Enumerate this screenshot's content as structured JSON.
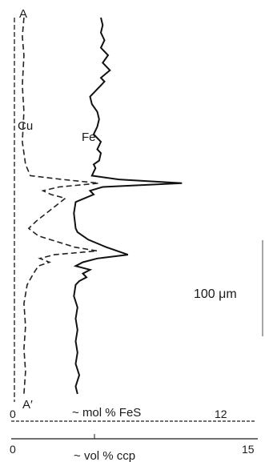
{
  "chart_data": {
    "type": "line",
    "profile_labels": {
      "start": "A",
      "end": "A′"
    },
    "scale_bar_label": "100 μm",
    "axes": [
      {
        "label": "mol % FeS",
        "ticks": [
          "0",
          "12"
        ],
        "range": [
          0,
          12
        ]
      },
      {
        "label": "vol % ccp",
        "ticks": [
          "0",
          "15"
        ],
        "range": [
          0,
          15
        ]
      }
    ],
    "series": [
      {
        "name": "Fe",
        "axis": "mol % FeS",
        "style": "solid",
        "points": [
          [
            4.8,
            0.0
          ],
          [
            4.9,
            0.02
          ],
          [
            4.8,
            0.04
          ],
          [
            5.0,
            0.06
          ],
          [
            4.8,
            0.08
          ],
          [
            5.2,
            0.1
          ],
          [
            4.9,
            0.12
          ],
          [
            5.3,
            0.14
          ],
          [
            4.8,
            0.16
          ],
          [
            5.0,
            0.17
          ],
          [
            4.6,
            0.19
          ],
          [
            4.2,
            0.21
          ],
          [
            4.3,
            0.23
          ],
          [
            4.6,
            0.25
          ],
          [
            4.7,
            0.27
          ],
          [
            4.6,
            0.29
          ],
          [
            4.4,
            0.31
          ],
          [
            4.8,
            0.33
          ],
          [
            4.6,
            0.35
          ],
          [
            4.8,
            0.36
          ],
          [
            4.7,
            0.38
          ],
          [
            4.4,
            0.39
          ],
          [
            4.5,
            0.4
          ],
          [
            4.4,
            0.41
          ],
          [
            4.3,
            0.42
          ],
          [
            5.8,
            0.43
          ],
          [
            9.3,
            0.44
          ],
          [
            4.9,
            0.45
          ],
          [
            4.2,
            0.46
          ],
          [
            4.4,
            0.47
          ],
          [
            3.9,
            0.48
          ],
          [
            3.4,
            0.49
          ],
          [
            3.3,
            0.52
          ],
          [
            3.4,
            0.56
          ],
          [
            3.5,
            0.57
          ],
          [
            4.1,
            0.59
          ],
          [
            5.1,
            0.61
          ],
          [
            6.3,
            0.63
          ],
          [
            4.6,
            0.64
          ],
          [
            3.8,
            0.65
          ],
          [
            3.4,
            0.66
          ],
          [
            4.2,
            0.67
          ],
          [
            3.8,
            0.68
          ],
          [
            4.0,
            0.69
          ],
          [
            3.6,
            0.7
          ],
          [
            3.4,
            0.71
          ],
          [
            3.3,
            0.74
          ],
          [
            3.5,
            0.77
          ],
          [
            3.4,
            0.8
          ],
          [
            3.5,
            0.83
          ],
          [
            3.4,
            0.86
          ],
          [
            3.5,
            0.89
          ],
          [
            3.4,
            0.92
          ],
          [
            3.6,
            0.95
          ],
          [
            3.4,
            0.98
          ],
          [
            3.5,
            1.0
          ]
        ]
      },
      {
        "name": "Cu",
        "axis": "vol % ccp",
        "style": "dashed",
        "points": [
          [
            0.6,
            0.0
          ],
          [
            0.5,
            0.05
          ],
          [
            0.6,
            0.1
          ],
          [
            0.5,
            0.18
          ],
          [
            0.6,
            0.25
          ],
          [
            0.5,
            0.33
          ],
          [
            0.7,
            0.39
          ],
          [
            1.0,
            0.42
          ],
          [
            3.0,
            0.43
          ],
          [
            5.3,
            0.44
          ],
          [
            2.8,
            0.45
          ],
          [
            1.8,
            0.46
          ],
          [
            2.3,
            0.47
          ],
          [
            3.2,
            0.48
          ],
          [
            2.6,
            0.5
          ],
          [
            2.0,
            0.52
          ],
          [
            1.4,
            0.54
          ],
          [
            0.9,
            0.56
          ],
          [
            1.5,
            0.58
          ],
          [
            3.8,
            0.61
          ],
          [
            5.2,
            0.62
          ],
          [
            2.5,
            0.63
          ],
          [
            1.6,
            0.64
          ],
          [
            2.2,
            0.65
          ],
          [
            1.5,
            0.66
          ],
          [
            1.2,
            0.68
          ],
          [
            0.8,
            0.71
          ],
          [
            0.6,
            0.76
          ],
          [
            0.7,
            0.82
          ],
          [
            0.6,
            0.88
          ],
          [
            0.7,
            0.94
          ],
          [
            0.6,
            1.0
          ]
        ]
      }
    ]
  }
}
